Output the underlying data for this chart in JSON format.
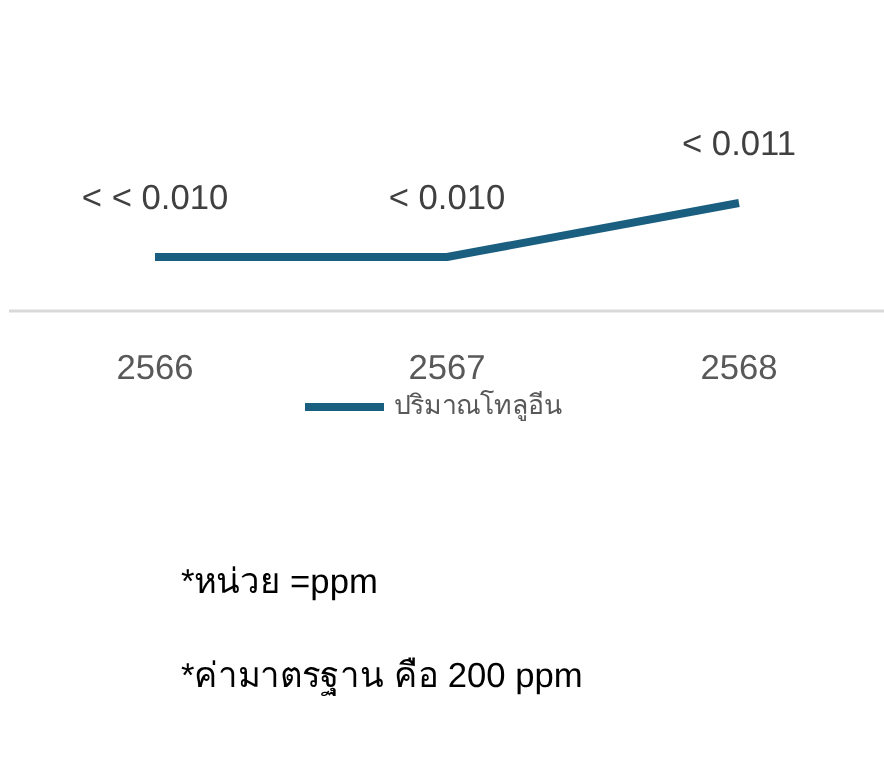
{
  "chart_data": {
    "type": "line",
    "categories": [
      "2566",
      "2567",
      "2568"
    ],
    "series": [
      {
        "name": "ปริมาณโทลูอีน",
        "color": "#1a5e80",
        "values": [
          0.01,
          0.01,
          0.011
        ],
        "value_labels": [
          "< < 0.010",
          "< 0.010",
          "< 0.011"
        ]
      }
    ],
    "tick_labels": "x",
    "grid": false,
    "legend": "bottom",
    "marker": "none",
    "line_style": "solid",
    "annotations": [
      "*หน่วย =ppm",
      "*ค่ามาตรฐาน คือ 200 ppm"
    ]
  }
}
